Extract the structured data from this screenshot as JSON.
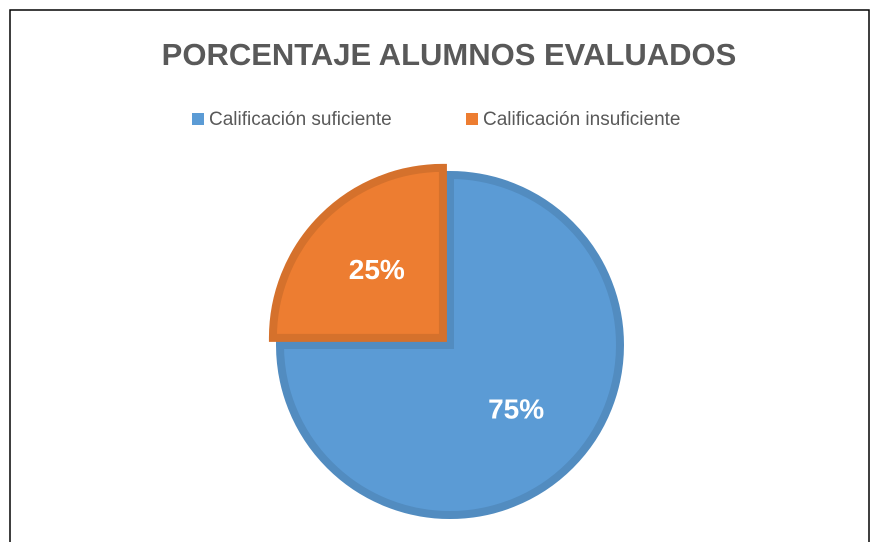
{
  "chart_data": {
    "type": "pie",
    "title": "PORCENTAJE ALUMNOS EVALUADOS",
    "categories": [
      "Calificación suficiente",
      "Calificación insuficiente"
    ],
    "values": [
      75,
      25
    ],
    "value_labels": [
      "75%",
      "25%"
    ],
    "colors": [
      "#5b9bd5",
      "#ed7d31"
    ],
    "legend": "top"
  }
}
